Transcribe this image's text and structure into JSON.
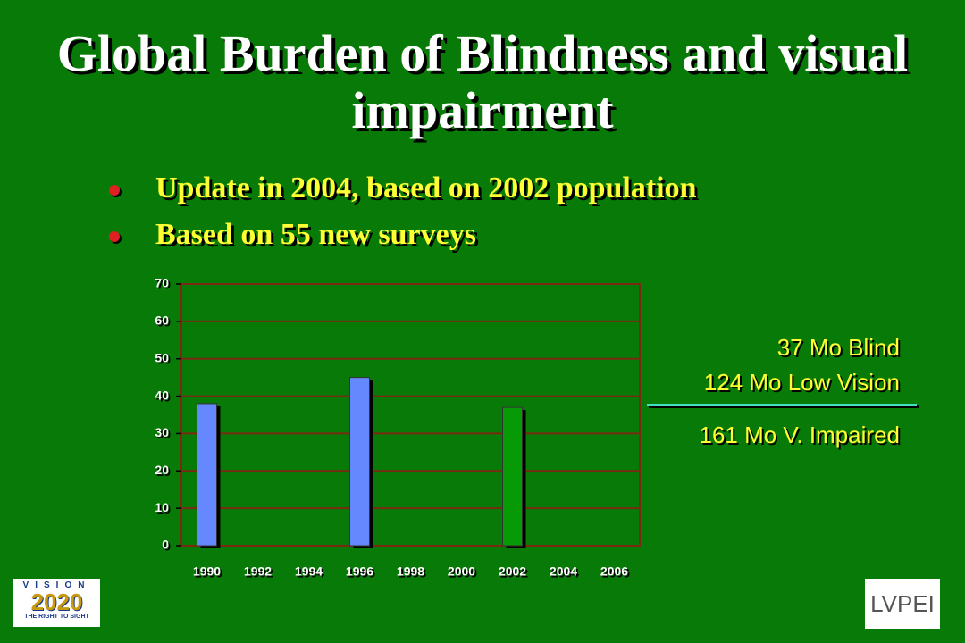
{
  "slide": {
    "title": "Global Burden of Blindness and visual impairment",
    "bullets": [
      "Update in 2004, based on 2002 population",
      "Based on 55 new surveys"
    ],
    "notes": [
      "37 Mo Blind",
      "124 Mo Low Vision",
      "161 Mo V. Impaired"
    ],
    "logo_left": {
      "top": "VISION",
      "year": "2020",
      "tagline": "THE RIGHT TO SIGHT"
    },
    "logo_right": "LVPEI"
  },
  "chart_data": {
    "type": "bar",
    "categories": [
      "1990",
      "1992",
      "1994",
      "1996",
      "1998",
      "2000",
      "2002",
      "2004",
      "2006"
    ],
    "values": [
      38,
      null,
      null,
      45,
      null,
      null,
      37,
      null,
      null
    ],
    "colors": [
      "#6688ff",
      null,
      null,
      "#6688ff",
      null,
      null,
      "#069a06",
      null,
      null
    ],
    "ylim": [
      0,
      70
    ],
    "yticks": [
      0,
      10,
      20,
      30,
      40,
      50,
      60,
      70
    ],
    "grid": true
  }
}
